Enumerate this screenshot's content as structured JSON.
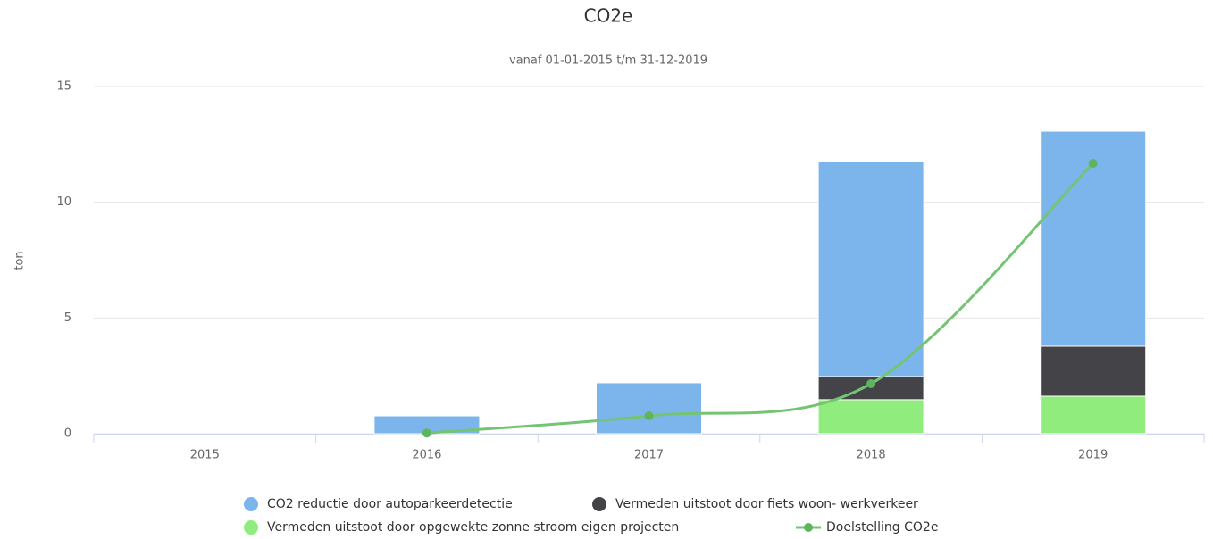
{
  "chart_data": {
    "type": "bar",
    "stacked": true,
    "title": "CO2e",
    "subtitle": "vanaf 01-01-2015 t/m 31-12-2019",
    "y_label": "ton",
    "categories": [
      "2015",
      "2016",
      "2017",
      "2018",
      "2019"
    ],
    "series": [
      {
        "name": "CO2 reductie door autoparkeerdetectie",
        "color": "#7cb5ec",
        "values": [
          0,
          0.77,
          2.2,
          9.29,
          9.29
        ]
      },
      {
        "name": "Vermeden uitstoot door fiets woon- werkverkeer",
        "color": "#434348",
        "values": [
          0,
          0,
          0,
          1.0,
          2.16
        ]
      },
      {
        "name": "Vermeden uitstoot door opgewekte zonne stroom eigen projecten",
        "color": "#90ed7d",
        "values": [
          0,
          0,
          0,
          1.47,
          1.62
        ]
      },
      {
        "name": "Doelstelling CO2e",
        "type": "line",
        "color": "#74c474",
        "values": [
          null,
          0.03,
          0.77,
          2.16,
          11.68
        ]
      }
    ],
    "ylim": [
      0,
      15
    ],
    "yticks": [
      0,
      5,
      10,
      15
    ],
    "grid": true
  }
}
